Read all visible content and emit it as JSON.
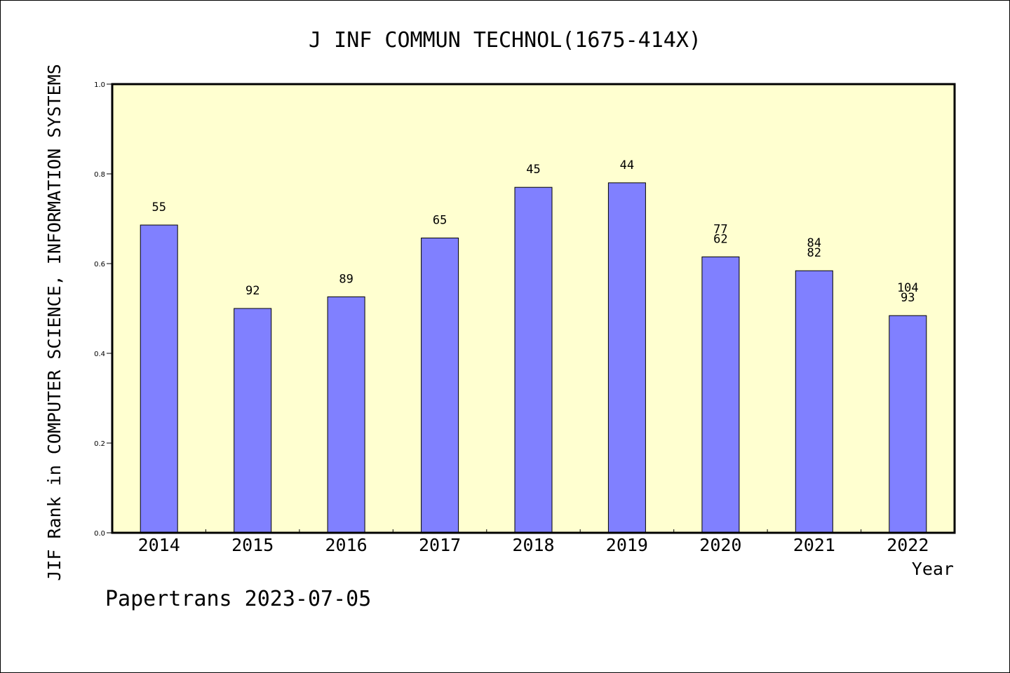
{
  "chart_data": {
    "type": "bar",
    "title": "J INF COMMUN TECHNOL(1675-414X)",
    "xlabel": "Year",
    "ylabel": "JIF Rank in COMPUTER SCIENCE, INFORMATION SYSTEMS",
    "ylim": [
      0.0,
      1.0
    ],
    "yticks": [
      "0.0",
      "0.2",
      "0.4",
      "0.6",
      "0.8",
      "1.0"
    ],
    "categories": [
      "2014",
      "2015",
      "2016",
      "2017",
      "2018",
      "2019",
      "2020",
      "2021",
      "2022"
    ],
    "values": [
      0.686,
      0.5,
      0.526,
      0.657,
      0.77,
      0.78,
      0.615,
      0.584,
      0.484
    ],
    "labels": [
      [
        "55"
      ],
      [
        "92"
      ],
      [
        "89"
      ],
      [
        "65"
      ],
      [
        "45"
      ],
      [
        "44"
      ],
      [
        "77",
        "62"
      ],
      [
        "84",
        "82"
      ],
      [
        "104",
        "93"
      ]
    ],
    "grid": false,
    "colors": {
      "bar_fill": "#8080ff",
      "plot_background": "#ffffd0",
      "axis": "#000000"
    }
  },
  "footer": "Papertrans 2023-07-05"
}
